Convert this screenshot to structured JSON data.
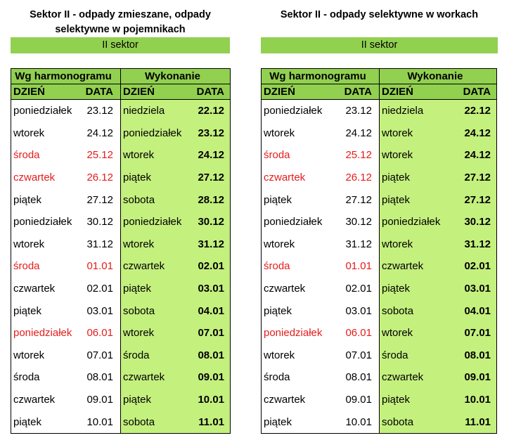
{
  "panels": [
    {
      "title_line1": "Sektor II - odpady zmieszane, odpady",
      "title_line2": "selektywne w pojemnikach",
      "sector_label": "II sektor",
      "group_left": "Wg harmonogramu",
      "group_right": "Wykonanie",
      "col_day": "DZIEŃ",
      "col_date": "DATA",
      "col_day2": "DZIEŃ",
      "col_date2": "DATA",
      "rows": [
        {
          "day": "poniedziałek",
          "date": "23.12",
          "holiday": false,
          "exec_day": "niedziela",
          "exec_date": "22.12"
        },
        {
          "day": "wtorek",
          "date": "24.12",
          "holiday": false,
          "exec_day": "poniedziałek",
          "exec_date": "23.12"
        },
        {
          "day": "środa",
          "date": "25.12",
          "holiday": true,
          "exec_day": "wtorek",
          "exec_date": "24.12"
        },
        {
          "day": "czwartek",
          "date": "26.12",
          "holiday": true,
          "exec_day": "piątek",
          "exec_date": "27.12"
        },
        {
          "day": "piątek",
          "date": "27.12",
          "holiday": false,
          "exec_day": "sobota",
          "exec_date": "28.12"
        },
        {
          "day": "poniedziałek",
          "date": "30.12",
          "holiday": false,
          "exec_day": "poniedziałek",
          "exec_date": "30.12"
        },
        {
          "day": "wtorek",
          "date": "31.12",
          "holiday": false,
          "exec_day": "wtorek",
          "exec_date": "31.12"
        },
        {
          "day": "środa",
          "date": "01.01",
          "holiday": true,
          "exec_day": "czwartek",
          "exec_date": "02.01"
        },
        {
          "day": "czwartek",
          "date": "02.01",
          "holiday": false,
          "exec_day": "piątek",
          "exec_date": "03.01"
        },
        {
          "day": "piątek",
          "date": "03.01",
          "holiday": false,
          "exec_day": "sobota",
          "exec_date": "04.01"
        },
        {
          "day": "poniedziałek",
          "date": "06.01",
          "holiday": true,
          "exec_day": "wtorek",
          "exec_date": "07.01"
        },
        {
          "day": "wtorek",
          "date": "07.01",
          "holiday": false,
          "exec_day": "środa",
          "exec_date": "08.01"
        },
        {
          "day": "środa",
          "date": "08.01",
          "holiday": false,
          "exec_day": "czwartek",
          "exec_date": "09.01"
        },
        {
          "day": "czwartek",
          "date": "09.01",
          "holiday": false,
          "exec_day": "piątek",
          "exec_date": "10.01"
        },
        {
          "day": "piątek",
          "date": "10.01",
          "holiday": false,
          "exec_day": "sobota",
          "exec_date": "11.01"
        }
      ]
    },
    {
      "title_line1": "Sektor II - odpady selektywne w workach",
      "title_line2": "",
      "sector_label": "II sektor",
      "group_left": "Wg harmonogramu",
      "group_right": "Wykonanie",
      "col_day": "DZIEŃ",
      "col_date": "DATA",
      "col_day2": "DZIEŃ",
      "col_date2": "DATA",
      "rows": [
        {
          "day": "poniedziałek",
          "date": "23.12",
          "holiday": false,
          "exec_day": "niedziela",
          "exec_date": "22.12"
        },
        {
          "day": "wtorek",
          "date": "24.12",
          "holiday": false,
          "exec_day": "wtorek",
          "exec_date": "24.12"
        },
        {
          "day": "środa",
          "date": "25.12",
          "holiday": true,
          "exec_day": "wtorek",
          "exec_date": "24.12"
        },
        {
          "day": "czwartek",
          "date": "26.12",
          "holiday": true,
          "exec_day": "piątek",
          "exec_date": "27.12"
        },
        {
          "day": "piątek",
          "date": "27.12",
          "holiday": false,
          "exec_day": "piątek",
          "exec_date": "27.12"
        },
        {
          "day": "poniedziałek",
          "date": "30.12",
          "holiday": false,
          "exec_day": "poniedziałek",
          "exec_date": "30.12"
        },
        {
          "day": "wtorek",
          "date": "31.12",
          "holiday": false,
          "exec_day": "wtorek",
          "exec_date": "31.12"
        },
        {
          "day": "środa",
          "date": "01.01",
          "holiday": true,
          "exec_day": "czwartek",
          "exec_date": "02.01"
        },
        {
          "day": "czwartek",
          "date": "02.01",
          "holiday": false,
          "exec_day": "piątek",
          "exec_date": "03.01"
        },
        {
          "day": "piątek",
          "date": "03.01",
          "holiday": false,
          "exec_day": "sobota",
          "exec_date": "04.01"
        },
        {
          "day": "poniedziałek",
          "date": "06.01",
          "holiday": true,
          "exec_day": "wtorek",
          "exec_date": "07.01"
        },
        {
          "day": "wtorek",
          "date": "07.01",
          "holiday": false,
          "exec_day": "środa",
          "exec_date": "08.01"
        },
        {
          "day": "środa",
          "date": "08.01",
          "holiday": false,
          "exec_day": "czwartek",
          "exec_date": "09.01"
        },
        {
          "day": "czwartek",
          "date": "09.01",
          "holiday": false,
          "exec_day": "piątek",
          "exec_date": "10.01"
        },
        {
          "day": "piątek",
          "date": "10.01",
          "holiday": false,
          "exec_day": "sobota",
          "exec_date": "11.01"
        }
      ]
    }
  ],
  "colors": {
    "header_green": "#92d050",
    "exec_green": "#c4f07e",
    "holiday_red": "#e51c1c"
  }
}
